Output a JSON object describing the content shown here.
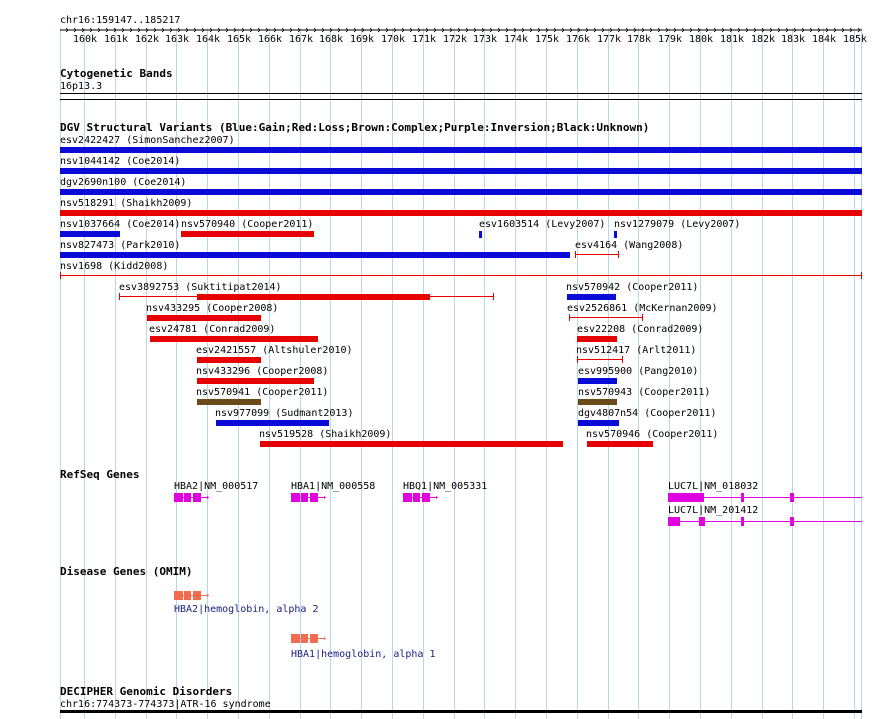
{
  "header": {
    "coords": "chr16:159147..185217"
  },
  "axis": {
    "ticks": [
      "160k",
      "161k",
      "162k",
      "163k",
      "164k",
      "165k",
      "166k",
      "167k",
      "168k",
      "169k",
      "170k",
      "171k",
      "172k",
      "173k",
      "174k",
      "175k",
      "176k",
      "177k",
      "178k",
      "179k",
      "180k",
      "181k",
      "182k",
      "183k",
      "184k",
      "185k"
    ]
  },
  "tracks": {
    "cyto": {
      "title": "Cytogenetic Bands",
      "band": "16p13.3"
    },
    "dgv": {
      "title": "DGV Structural Variants (Blue:Gain;Red:Loss;Brown:Complex;Purple:Inversion;Black:Unknown)",
      "labels": [
        "esv2422427 (SimonSanchez2007)",
        "nsv1044142 (Coe2014)",
        "dgv2690n100 (Coe2014)",
        "nsv518291 (Shaikh2009)",
        "nsv1037664 (Coe2014)",
        "nsv570940 (Cooper2011)",
        "esv1603514 (Levy2007)",
        "nsv1279079 (Levy2007)",
        "nsv827473 (Park2010)",
        "esv4164 (Wang2008)",
        "nsv1698 (Kidd2008)",
        "esv3892753 (Suktitipat2014)",
        "nsv570942 (Cooper2011)",
        "nsv433295 (Cooper2008)",
        "esv2526861 (McKernan2009)",
        "esv24781 (Conrad2009)",
        "esv22208 (Conrad2009)",
        "esv2421557 (Altshuler2010)",
        "nsv512417 (Arlt2011)",
        "nsv433296 (Cooper2008)",
        "esv995900 (Pang2010)",
        "nsv570941 (Cooper2011)",
        "nsv570943 (Cooper2011)",
        "nsv977099 (Sudmant2013)",
        "dgv4807n54 (Cooper2011)",
        "nsv519528 (Shaikh2009)",
        "nsv570946 (Cooper2011)"
      ],
      "colors": {
        "gain": "#0b0bd8",
        "loss": "#e60000",
        "complex": "#6b4b1a"
      }
    },
    "refseq": {
      "title": "RefSeq Genes",
      "genes": [
        "HBA2|NM_000517",
        "HBA1|NM_000558",
        "HBQ1|NM_005331",
        "LUC7L|NM_018032",
        "LUC7L|NM_201412"
      ]
    },
    "omim": {
      "title": "Disease Genes (OMIM)",
      "genes": [
        "HBA2|hemoglobin, alpha 2",
        "HBA1|hemoglobin, alpha 1"
      ]
    },
    "decipher": {
      "title": "DECIPHER Genomic Disorders",
      "item": "chr16:774373-774373|ATR-16 syndrome"
    }
  }
}
